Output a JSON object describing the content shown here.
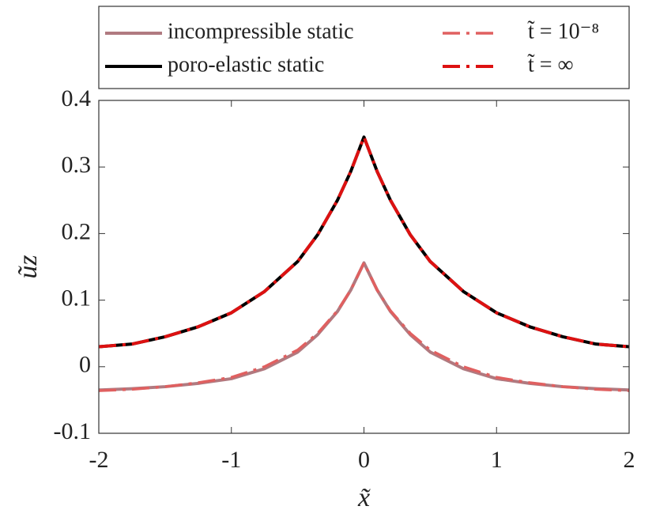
{
  "chart_data": {
    "type": "line",
    "xlabel": "x̃",
    "ylabel": "ũz",
    "x": [
      -2,
      -1.75,
      -1.5,
      -1.25,
      -1,
      -0.75,
      -0.5,
      -0.35,
      -0.2,
      -0.1,
      0,
      0.1,
      0.2,
      0.35,
      0.5,
      0.75,
      1,
      1.25,
      1.5,
      1.75,
      2
    ],
    "series": [
      {
        "name": "incompressible static",
        "color": "#b07a80",
        "dash": "solid",
        "values": [
          -0.035,
          -0.033,
          -0.03,
          -0.025,
          -0.018,
          -0.003,
          0.022,
          0.048,
          0.083,
          0.115,
          0.156,
          0.115,
          0.083,
          0.048,
          0.022,
          -0.003,
          -0.018,
          -0.025,
          -0.03,
          -0.033,
          -0.035
        ]
      },
      {
        "name": "poro-elastic static",
        "color": "#000000",
        "dash": "solid",
        "values": [
          0.03,
          0.034,
          0.045,
          0.06,
          0.081,
          0.113,
          0.158,
          0.198,
          0.25,
          0.293,
          0.345,
          0.293,
          0.25,
          0.198,
          0.158,
          0.113,
          0.081,
          0.06,
          0.045,
          0.034,
          0.03
        ]
      },
      {
        "name": "t̃ = 10⁻⁸",
        "color": "#e06060",
        "dash": "dashdot",
        "values": [
          -0.036,
          -0.034,
          -0.03,
          -0.024,
          -0.016,
          0.0,
          0.025,
          0.05,
          0.084,
          0.115,
          0.156,
          0.115,
          0.084,
          0.05,
          0.025,
          0.0,
          -0.016,
          -0.024,
          -0.03,
          -0.034,
          -0.036
        ]
      },
      {
        "name": "t̃ = ∞",
        "color": "#dd1111",
        "dash": "dashdot",
        "values": [
          0.03,
          0.034,
          0.045,
          0.06,
          0.081,
          0.113,
          0.158,
          0.198,
          0.25,
          0.293,
          0.345,
          0.293,
          0.25,
          0.198,
          0.158,
          0.113,
          0.081,
          0.06,
          0.045,
          0.034,
          0.03
        ]
      }
    ],
    "xlim": [
      -2,
      2
    ],
    "xticks": [
      -2,
      -1,
      0,
      1,
      2
    ],
    "ylim": [
      -0.1,
      0.4
    ],
    "yticks": [
      -0.1,
      0,
      0.1,
      0.2,
      0.3,
      0.4
    ],
    "grid": false,
    "legend": "top"
  }
}
